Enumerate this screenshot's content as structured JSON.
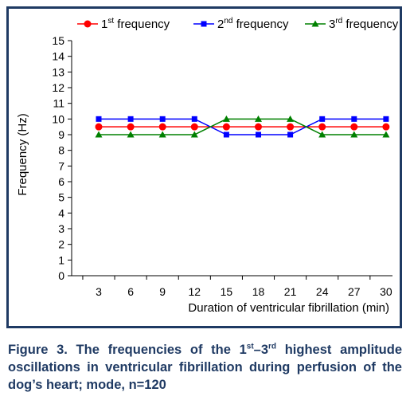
{
  "chart_data": {
    "type": "line",
    "categories": [
      "3",
      "6",
      "9",
      "12",
      "15",
      "18",
      "21",
      "24",
      "27",
      "30"
    ],
    "series": [
      {
        "name": "1st frequency",
        "name_base": "1",
        "name_sup": "st",
        "name_rest": " frequency",
        "color": "#ff0000",
        "marker": "circle",
        "values": [
          9.5,
          9.5,
          9.5,
          9.5,
          9.5,
          9.5,
          9.5,
          9.5,
          9.5,
          9.5
        ]
      },
      {
        "name": "2nd frequency",
        "name_base": "2",
        "name_sup": "nd",
        "name_rest": " frequency",
        "color": "#0000ff",
        "marker": "square",
        "values": [
          10,
          10,
          10,
          10,
          9,
          9,
          9,
          10,
          10,
          10
        ]
      },
      {
        "name": "3rd frequency",
        "name_base": "3",
        "name_sup": "rd",
        "name_rest": " frequency",
        "color": "#008000",
        "marker": "triangle",
        "values": [
          9,
          9,
          9,
          9,
          10,
          10,
          10,
          9,
          9,
          9
        ]
      }
    ],
    "ylabel": "Frequency (Hz)",
    "xlabel": "Duration of ventricular fibrillation (min)",
    "ylim": [
      0,
      15
    ],
    "yticks": [
      "0",
      "1",
      "2",
      "3",
      "4",
      "5",
      "6",
      "7",
      "8",
      "9",
      "10",
      "11",
      "12",
      "13",
      "14",
      "15"
    ],
    "grid": false,
    "legend": "top"
  },
  "caption": {
    "prefix": "Figure 3. The frequencies of the 1",
    "sup1": "st",
    "dash": "–3",
    "sup2": "rd",
    "rest": " highest amplitude oscillations in ventricular fibrillation during perfusion of the dog’s heart; mode, n=120"
  }
}
